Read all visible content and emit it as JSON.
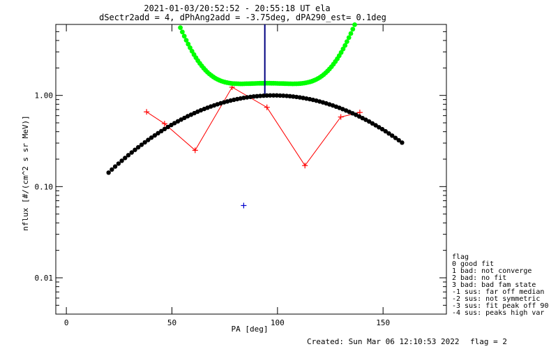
{
  "chart_data": {
    "type": "scatter",
    "title": "2021-01-03/20:52:52 - 20:55:18 UT ela",
    "subtitle": "dSectr2add = 4, dPhAng2add = -3.75deg, dPA290_est=   0.1deg",
    "xlabel": "PA [deg]",
    "ylabel": "nflux [#/(cm^2 s sr MeV)]",
    "xlim": [
      -5,
      180
    ],
    "ylim": [
      0.004,
      6
    ],
    "yscale": "log",
    "xticks": [
      0,
      50,
      100,
      150
    ],
    "xtick_labels": [
      "0",
      "50",
      "100",
      "150"
    ],
    "yticks": [
      0.01,
      0.1,
      1.0
    ],
    "ytick_labels": [
      "0.01",
      "0.10",
      "1.00"
    ],
    "series": [
      {
        "color": "#ff0000",
        "marker": "+",
        "line": true,
        "x": [
          38,
          46.5,
          61,
          78.5,
          95,
          113,
          130,
          139
        ],
        "y": [
          0.66,
          0.49,
          0.25,
          1.23,
          0.74,
          0.17,
          0.58,
          0.65
        ]
      },
      {
        "color": "#000000",
        "marker": "dot",
        "curve": "gaussian",
        "x_range": [
          20,
          159
        ],
        "peak": 98,
        "amplitude": 1.0,
        "sigma": 39.5
      },
      {
        "color": "#00ff00",
        "marker": "dot",
        "curve": "double-gaussian",
        "x_range": [
          26.5,
          154
        ],
        "center": 95,
        "amplitude": 1.0,
        "sigma": 24.5,
        "base": 0.36,
        "base_slope": 0.0016
      },
      {
        "color": "#0000cc",
        "marker": "+",
        "x": [
          84
        ],
        "y": [
          0.062
        ]
      }
    ],
    "marker_line": {
      "x": 94,
      "y_from": 1.04,
      "y_to": 6,
      "color": "#000080"
    }
  },
  "legend": {
    "title": "flag",
    "items": [
      " 0 good fit",
      " 1 bad: not converge",
      " 2 bad: no fit",
      " 3 bad: bad fam state",
      "-1 sus: far off median",
      "-2 sus: not symmetric",
      "-3 sus: fit peak off 90",
      "-4 sus: peaks high var"
    ]
  },
  "footer": {
    "created": "Created: Sun Mar 06 12:10:53 2022",
    "flag": "flag = 2"
  }
}
